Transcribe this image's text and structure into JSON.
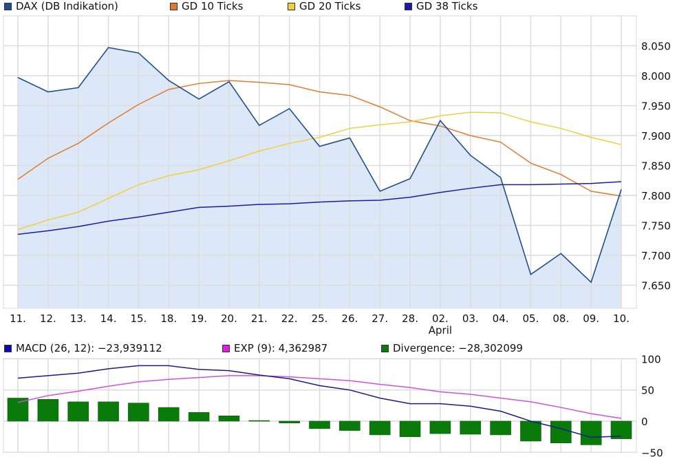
{
  "chart_data": [
    {
      "type": "line",
      "title": "DAX (DB Indikation)",
      "xlabel": "April",
      "ylabel": "",
      "ylim": [
        7620,
        8070
      ],
      "grid": true,
      "legend_position": "top",
      "categories": [
        "11.",
        "12.",
        "13.",
        "14.",
        "15.",
        "18.",
        "19.",
        "20.",
        "21.",
        "22.",
        "25.",
        "26.",
        "27.",
        "28.",
        "02.",
        "03.",
        "04.",
        "05.",
        "08.",
        "09.",
        "10."
      ],
      "month_label": {
        "text": "April",
        "under_index": 14
      },
      "y_ticks": [
        8050,
        8000,
        7950,
        7900,
        7850,
        7800,
        7750,
        7700,
        7650
      ],
      "y_tick_labels": [
        "8.050",
        "8.000",
        "7.950",
        "7.900",
        "7.850",
        "7.800",
        "7.750",
        "7.700",
        "7.650"
      ],
      "series": [
        {
          "name": "DAX (DB Indikation)",
          "color": "#1f4e8c",
          "fill": "#dce8f8",
          "style": "area",
          "values": [
            7997,
            7973,
            7980,
            8047,
            8038,
            7992,
            7961,
            7990,
            7917,
            7945,
            7882,
            7896,
            7807,
            7828,
            7925,
            7867,
            7830,
            7668,
            7703,
            7655,
            7810
          ]
        },
        {
          "name": "GD 10 Ticks",
          "color": "#e07b30",
          "values": [
            7827,
            7862,
            7887,
            7921,
            7952,
            7977,
            7987,
            7992,
            7989,
            7985,
            7973,
            7967,
            7948,
            7925,
            7916,
            7900,
            7889,
            7854,
            7835,
            7807,
            7799
          ]
        },
        {
          "name": "GD 20 Ticks",
          "color": "#f2cf3a",
          "values": [
            7743,
            7759,
            7772,
            7795,
            7818,
            7833,
            7843,
            7858,
            7874,
            7887,
            7897,
            7912,
            7918,
            7923,
            7933,
            7939,
            7938,
            7923,
            7912,
            7897,
            7885
          ]
        },
        {
          "name": "GD 38 Ticks",
          "color": "#1a1aa6",
          "values": [
            7735,
            7741,
            7748,
            7757,
            7764,
            7772,
            7780,
            7782,
            7785,
            7786,
            7789,
            7791,
            7792,
            7797,
            7805,
            7812,
            7818,
            7818,
            7819,
            7820,
            7823
          ]
        }
      ]
    },
    {
      "type": "line",
      "title": "MACD",
      "ylim": [
        -50,
        100
      ],
      "grid": true,
      "legend_position": "top",
      "y_ticks": [
        100,
        50,
        0,
        -50
      ],
      "y_tick_labels": [
        "100",
        "50",
        "0",
        "−50"
      ],
      "series": [
        {
          "name": "MACD (26, 12)",
          "color": "#1a1a8c",
          "values": [
            69,
            73,
            77,
            84,
            89,
            89,
            83,
            81,
            74,
            68,
            57,
            50,
            37,
            28,
            28,
            24,
            16,
            0,
            -12,
            -26,
            -24
          ]
        },
        {
          "name": "EXP (9)",
          "color": "#d54fd5",
          "values": [
            30,
            41,
            48,
            56,
            63,
            67,
            70,
            73,
            73,
            71,
            68,
            65,
            59,
            54,
            47,
            43,
            37,
            31,
            22,
            12,
            4.4
          ]
        },
        {
          "name": "Divergence",
          "color": "#0a7a0a",
          "style": "bar",
          "values": [
            37,
            35,
            31,
            31,
            29,
            22,
            14,
            8.5,
            1,
            -3,
            -12,
            -15,
            -22,
            -25,
            -20,
            -21,
            -22,
            -32,
            -35,
            -38,
            -28.3
          ]
        }
      ]
    }
  ],
  "top_legend": [
    {
      "label": "DAX (DB Indikation)",
      "color": "#1f4e8c"
    },
    {
      "label": "GD 10 Ticks",
      "color": "#e07b30"
    },
    {
      "label": "GD 20 Ticks",
      "color": "#f2cf3a"
    },
    {
      "label": "GD 38 Ticks",
      "color": "#1a1aa6"
    }
  ],
  "bottom_legend": [
    {
      "label": "MACD (26, 12): −23,939112",
      "color": "#0a0ab0"
    },
    {
      "label": "EXP (9): 4,362987",
      "color": "#e020e0"
    },
    {
      "label": "Divergence: −28,302099",
      "color": "#0a7a0a"
    }
  ]
}
